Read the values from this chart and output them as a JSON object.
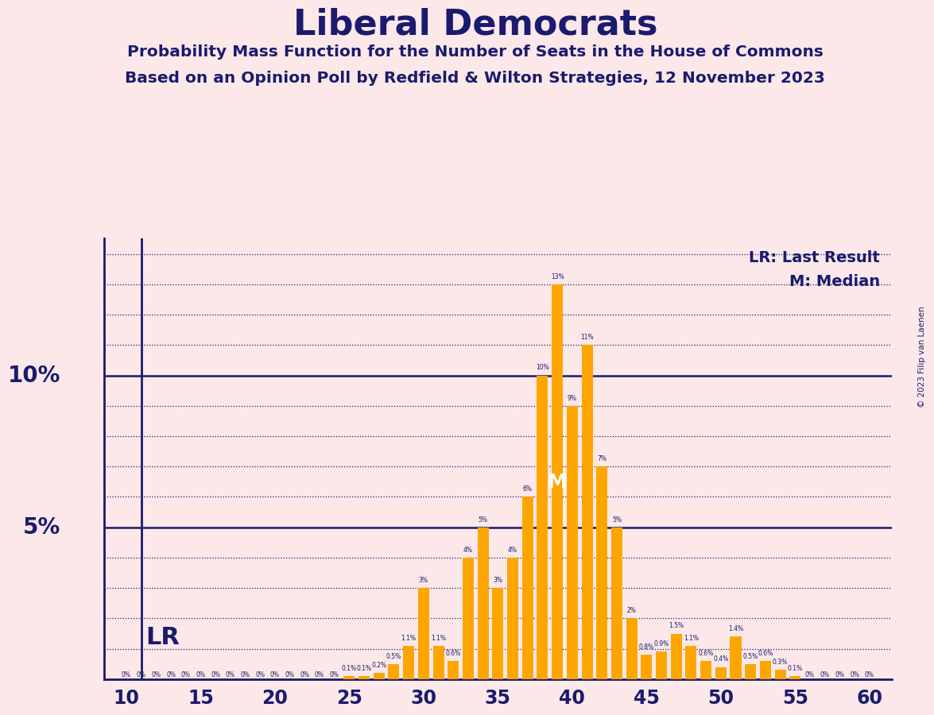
{
  "title": "Liberal Democrats",
  "subtitle1": "Probability Mass Function for the Number of Seats in the House of Commons",
  "subtitle2": "Based on an Opinion Poll by Redfield & Wilton Strategies, 12 November 2023",
  "background_color": "#fce8e8",
  "bar_color": "#FFA500",
  "text_color": "#1a1a6e",
  "legend_lr": "LR: Last Result",
  "legend_m": "M: Median",
  "lr_seat": 11,
  "median_seat": 39,
  "median_label_seat": 39,
  "xlim": [
    8.5,
    61.5
  ],
  "ylim": [
    0,
    14.5
  ],
  "xticks": [
    10,
    15,
    20,
    25,
    30,
    35,
    40,
    45,
    50,
    55,
    60
  ],
  "solid_yticks": [
    5,
    10
  ],
  "dotted_yticks": [
    1,
    2,
    3,
    4,
    6,
    7,
    8,
    9,
    11,
    12,
    13,
    14
  ],
  "seats": [
    10,
    11,
    12,
    13,
    14,
    15,
    16,
    17,
    18,
    19,
    20,
    21,
    22,
    23,
    24,
    25,
    26,
    27,
    28,
    29,
    30,
    31,
    32,
    33,
    34,
    35,
    36,
    37,
    38,
    39,
    40,
    41,
    42,
    43,
    44,
    45,
    46,
    47,
    48,
    49,
    50,
    51,
    52,
    53,
    54,
    55,
    56,
    57,
    58,
    59,
    60
  ],
  "probs": [
    0.0,
    0.0,
    0.0,
    0.0,
    0.0,
    0.0,
    0.0,
    0.0,
    0.0,
    0.0,
    0.0,
    0.0,
    0.0,
    0.0,
    0.0,
    0.1,
    0.1,
    0.2,
    0.5,
    1.1,
    3.0,
    1.1,
    0.6,
    4.0,
    5.0,
    3.0,
    4.0,
    6.0,
    10.0,
    13.0,
    9.0,
    11.0,
    7.0,
    5.0,
    2.0,
    0.8,
    0.9,
    1.5,
    1.1,
    0.6,
    0.4,
    1.4,
    0.5,
    0.6,
    0.3,
    0.1,
    0.0,
    0.0,
    0.0,
    0.0,
    0.0
  ],
  "prob_labels": [
    "0%",
    "0%",
    "0%",
    "0%",
    "0%",
    "0%",
    "0%",
    "0%",
    "0%",
    "0%",
    "0%",
    "0%",
    "0%",
    "0%",
    "0%",
    "0.1%",
    "0.1%",
    "0.2%",
    "0.5%",
    "1.1%",
    "3%",
    "1.1%",
    "0.6%",
    "4%",
    "5%",
    "3%",
    "4%",
    "6%",
    "10%",
    "13%",
    "9%",
    "11%",
    "7%",
    "5%",
    "2%",
    "0.8%",
    "0.9%",
    "1.5%",
    "1.1%",
    "0.6%",
    "0.4%",
    "1.4%",
    "0.5%",
    "0.6%",
    "0.3%",
    "0.1%",
    "0%",
    "0%",
    "0%",
    "0%",
    "0%"
  ],
  "copyright": "© 2023 Filip van Laenen"
}
